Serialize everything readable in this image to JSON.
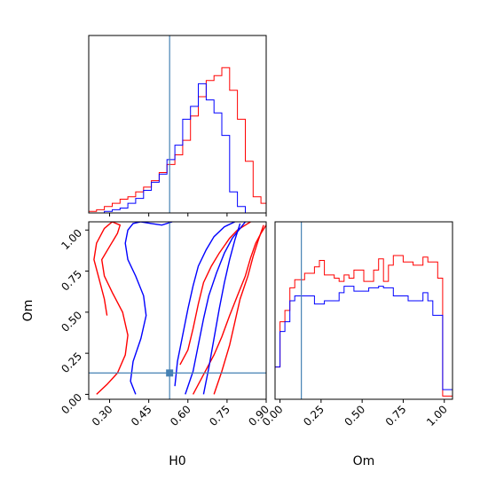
{
  "chart_data": {
    "type": "corner",
    "title": "",
    "colors": {
      "run_a": "#ff0000",
      "run_b": "#0000ff",
      "truth": "#4682b4"
    },
    "parameters": [
      "H0",
      "Om"
    ],
    "truth": {
      "H0": 0.53,
      "Om": 0.13
    },
    "axes": {
      "H0": {
        "range": [
          0.22,
          0.9
        ],
        "ticks": [
          0.3,
          0.45,
          0.6,
          0.75,
          0.9
        ],
        "tick_labels": [
          "0.30",
          "0.45",
          "0.60",
          "0.75",
          "0.90"
        ],
        "label": "H0"
      },
      "Om": {
        "range": [
          -0.03,
          1.05
        ],
        "ticks": [
          0.0,
          0.25,
          0.5,
          0.75,
          1.0
        ],
        "tick_labels": [
          "0.00",
          "0.25",
          "0.50",
          "0.75",
          "1.00"
        ],
        "label": "Om"
      },
      "Om_marginal_x": {
        "range": [
          -0.03,
          1.05
        ],
        "ticks": [
          0.0,
          0.25,
          0.5,
          0.75,
          1.0
        ],
        "tick_labels": [
          "0.00",
          "0.25",
          "0.50",
          "0.75",
          "1.00"
        ],
        "label": "Om"
      }
    },
    "marginal_H0": {
      "edges": [
        0.22,
        0.25,
        0.28,
        0.31,
        0.34,
        0.37,
        0.4,
        0.43,
        0.46,
        0.49,
        0.52,
        0.55,
        0.58,
        0.61,
        0.64,
        0.67,
        0.7,
        0.73,
        0.76,
        0.79,
        0.82,
        0.85,
        0.88,
        0.9
      ],
      "series": [
        {
          "color_key": "run_a",
          "values": [
            0.01,
            0.02,
            0.04,
            0.06,
            0.085,
            0.1,
            0.13,
            0.16,
            0.2,
            0.25,
            0.3,
            0.36,
            0.45,
            0.6,
            0.72,
            0.82,
            0.85,
            0.9,
            0.76,
            0.58,
            0.32,
            0.1,
            0.06
          ]
        },
        {
          "color_key": "run_b",
          "values": [
            0.0,
            0.0,
            0.01,
            0.02,
            0.03,
            0.06,
            0.09,
            0.14,
            0.19,
            0.24,
            0.33,
            0.42,
            0.58,
            0.66,
            0.8,
            0.7,
            0.62,
            0.48,
            0.13,
            0.04,
            0.0,
            0.0,
            0.0
          ]
        }
      ]
    },
    "marginal_Om": {
      "edges": [
        -0.03,
        0.0,
        0.03,
        0.06,
        0.09,
        0.12,
        0.15,
        0.18,
        0.21,
        0.24,
        0.27,
        0.3,
        0.33,
        0.36,
        0.39,
        0.42,
        0.45,
        0.48,
        0.51,
        0.54,
        0.57,
        0.6,
        0.63,
        0.66,
        0.69,
        0.72,
        0.75,
        0.78,
        0.81,
        0.84,
        0.87,
        0.9,
        0.93,
        0.96,
        0.99,
        1.02,
        1.05
      ],
      "series": [
        {
          "color_key": "run_a",
          "values": [
            0.2,
            0.48,
            0.55,
            0.69,
            0.74,
            0.74,
            0.78,
            0.78,
            0.82,
            0.86,
            0.77,
            0.77,
            0.75,
            0.73,
            0.77,
            0.75,
            0.8,
            0.8,
            0.73,
            0.73,
            0.8,
            0.87,
            0.73,
            0.83,
            0.89,
            0.89,
            0.85,
            0.85,
            0.83,
            0.83,
            0.88,
            0.85,
            0.85,
            0.75,
            0.02,
            0.02
          ]
        },
        {
          "color_key": "run_b",
          "values": [
            0.2,
            0.42,
            0.48,
            0.61,
            0.64,
            0.64,
            0.64,
            0.64,
            0.59,
            0.59,
            0.61,
            0.61,
            0.61,
            0.66,
            0.7,
            0.7,
            0.67,
            0.67,
            0.67,
            0.69,
            0.69,
            0.7,
            0.69,
            0.69,
            0.64,
            0.64,
            0.64,
            0.61,
            0.61,
            0.61,
            0.66,
            0.61,
            0.52,
            0.52,
            0.06,
            0.06
          ]
        }
      ]
    },
    "contours_H0_Om": [
      {
        "color_key": "run_a",
        "x": [
          0.62,
          0.66,
          0.7,
          0.73,
          0.76,
          0.79,
          0.82,
          0.84,
          0.86,
          0.88,
          0.9
        ],
        "y": [
          0.0,
          0.12,
          0.24,
          0.35,
          0.48,
          0.6,
          0.72,
          0.83,
          0.92,
          0.98,
          1.03
        ]
      },
      {
        "color_key": "run_a",
        "x": [
          0.7,
          0.73,
          0.76,
          0.78,
          0.8,
          0.83,
          0.85,
          0.87,
          0.89
        ],
        "y": [
          0.0,
          0.14,
          0.3,
          0.44,
          0.58,
          0.72,
          0.84,
          0.94,
          1.03
        ]
      },
      {
        "color_key": "run_a",
        "x": [
          0.57,
          0.6,
          0.62,
          0.64,
          0.66,
          0.69,
          0.72,
          0.76,
          0.79,
          0.82,
          0.84
        ],
        "y": [
          0.18,
          0.27,
          0.4,
          0.55,
          0.68,
          0.78,
          0.86,
          0.95,
          1.0,
          1.03,
          1.05
        ]
      },
      {
        "color_key": "run_a",
        "x": [
          0.25,
          0.29,
          0.33,
          0.36,
          0.37,
          0.35,
          0.31,
          0.28,
          0.27,
          0.3,
          0.33,
          0.34,
          0.31,
          0.28,
          0.25,
          0.24,
          0.26,
          0.28,
          0.29
        ],
        "y": [
          0.0,
          0.06,
          0.13,
          0.24,
          0.36,
          0.5,
          0.62,
          0.72,
          0.82,
          0.9,
          0.98,
          1.03,
          1.05,
          1.01,
          0.92,
          0.82,
          0.7,
          0.58,
          0.48
        ]
      },
      {
        "color_key": "run_b",
        "x": [
          0.59,
          0.62,
          0.64,
          0.66,
          0.68,
          0.71,
          0.74,
          0.77,
          0.8,
          0.82
        ],
        "y": [
          0.0,
          0.14,
          0.3,
          0.46,
          0.6,
          0.74,
          0.86,
          0.95,
          1.01,
          1.05
        ]
      },
      {
        "color_key": "run_b",
        "x": [
          0.66,
          0.68,
          0.7,
          0.72,
          0.74,
          0.76,
          0.78,
          0.8
        ],
        "y": [
          0.0,
          0.16,
          0.34,
          0.52,
          0.68,
          0.82,
          0.94,
          1.04
        ]
      },
      {
        "color_key": "run_b",
        "x": [
          0.55,
          0.56,
          0.58,
          0.6,
          0.62,
          0.64,
          0.67,
          0.7,
          0.74,
          0.78
        ],
        "y": [
          0.05,
          0.2,
          0.36,
          0.52,
          0.66,
          0.78,
          0.88,
          0.96,
          1.02,
          1.05
        ]
      },
      {
        "color_key": "run_b",
        "x": [
          0.4,
          0.38,
          0.39,
          0.42,
          0.44,
          0.43,
          0.4,
          0.37,
          0.36,
          0.37,
          0.39,
          0.42,
          0.46,
          0.5,
          0.54
        ],
        "y": [
          0.0,
          0.08,
          0.2,
          0.34,
          0.48,
          0.6,
          0.72,
          0.82,
          0.92,
          1.0,
          1.04,
          1.05,
          1.04,
          1.03,
          1.05
        ]
      }
    ]
  }
}
